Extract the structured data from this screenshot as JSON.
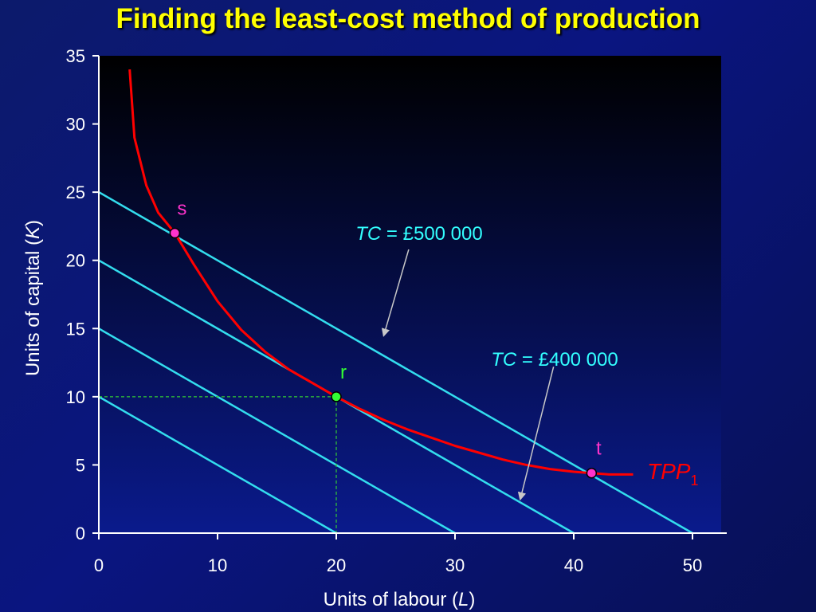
{
  "title": "Finding the least-cost method of production",
  "chart_data": {
    "type": "line",
    "title": "Finding the least-cost method of production",
    "xlabel": "Units of labour (L)",
    "ylabel": "Units of capital (K)",
    "xlim": [
      0,
      52
    ],
    "ylim": [
      0,
      35
    ],
    "xticks": [
      0,
      10,
      20,
      30,
      40,
      50
    ],
    "yticks": [
      0,
      5,
      10,
      15,
      20,
      25,
      30,
      35
    ],
    "xlabel_parts": {
      "before": "Units of labour (",
      "var": "L",
      "after": ")"
    },
    "ylabel_parts": {
      "before": "Units of capital (",
      "var": "K",
      "after": ")"
    },
    "isoquant": {
      "name": "TPP",
      "subscript": "1",
      "color": "#ff0000",
      "points": [
        [
          2.6,
          34
        ],
        [
          3,
          29
        ],
        [
          4,
          25.5
        ],
        [
          5,
          23.5
        ],
        [
          6.4,
          22
        ],
        [
          8,
          19.7
        ],
        [
          10,
          17
        ],
        [
          12,
          14.9
        ],
        [
          14,
          13.3
        ],
        [
          16,
          12
        ],
        [
          18,
          11
        ],
        [
          20,
          10
        ],
        [
          22,
          9.1
        ],
        [
          24,
          8.3
        ],
        [
          26,
          7.6
        ],
        [
          28,
          7
        ],
        [
          30,
          6.4
        ],
        [
          32,
          5.9
        ],
        [
          34,
          5.4
        ],
        [
          36,
          5.0
        ],
        [
          38,
          4.7
        ],
        [
          40,
          4.5
        ],
        [
          41.5,
          4.4
        ],
        [
          43,
          4.3
        ],
        [
          45,
          4.3
        ]
      ]
    },
    "isocosts": [
      {
        "name": "TC = £500 000",
        "from": [
          0,
          25
        ],
        "to": [
          50,
          0
        ]
      },
      {
        "name": "TC = £400 000",
        "from": [
          0,
          20
        ],
        "to": [
          40,
          0
        ]
      },
      {
        "from": [
          0,
          15
        ],
        "to": [
          30,
          0
        ]
      },
      {
        "from": [
          0,
          10
        ],
        "to": [
          20,
          0
        ]
      }
    ],
    "points": [
      {
        "label": "s",
        "x": 6.4,
        "y": 22,
        "color": "#ff33cc"
      },
      {
        "label": "r",
        "x": 20,
        "y": 10,
        "color": "#33ff33"
      },
      {
        "label": "t",
        "x": 41.5,
        "y": 4.4,
        "color": "#ff33cc"
      }
    ],
    "annotations": [
      {
        "italic": "TC",
        "text": " = £500 000",
        "arrow_from": [
          26.1,
          20.8
        ],
        "arrow_to": [
          24,
          14.5
        ]
      },
      {
        "italic": "TC",
        "text": " = £400 000",
        "arrow_from": [
          38.3,
          12.2
        ],
        "arrow_to": [
          35.5,
          2.5
        ]
      }
    ],
    "guide": {
      "x": 20,
      "y": 10
    },
    "grid": false,
    "colors": {
      "isocost": "#33ddee",
      "guide": "#33cc33",
      "plot_bg_top": "#000000",
      "plot_bg_bottom": "#0a1a8c"
    }
  }
}
